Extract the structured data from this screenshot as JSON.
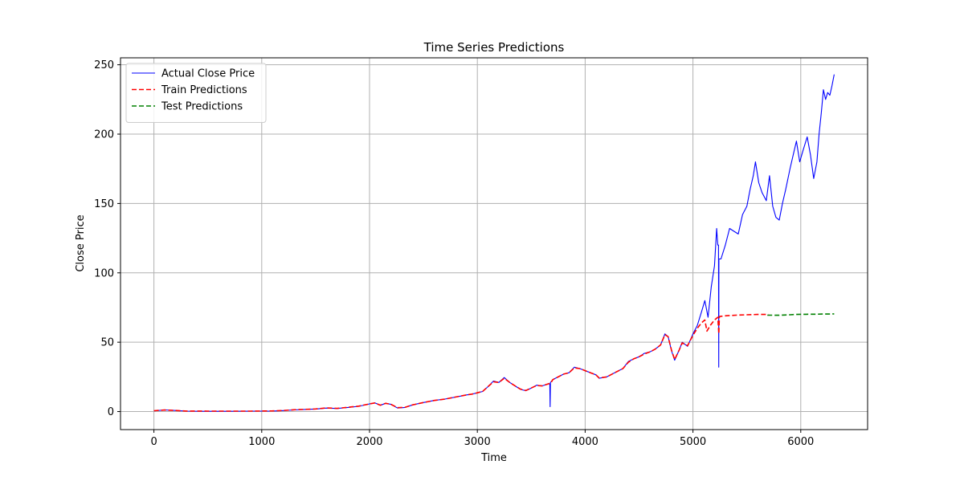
{
  "chart_data": {
    "type": "line",
    "title": "Time Series Predictions",
    "xlabel": "Time",
    "ylabel": "Close Price",
    "xlim": [
      -310,
      6620
    ],
    "ylim": [
      -13,
      255
    ],
    "xticks": [
      0,
      1000,
      2000,
      3000,
      4000,
      5000,
      6000
    ],
    "yticks": [
      0,
      50,
      100,
      150,
      200,
      250
    ],
    "grid": true,
    "legend_position": "top-left",
    "series": [
      {
        "name": "Actual Close Price",
        "color": "#0000ff",
        "style": "solid",
        "points": [
          [
            0,
            0.5
          ],
          [
            100,
            1.2
          ],
          [
            200,
            0.8
          ],
          [
            300,
            0.3
          ],
          [
            500,
            0.2
          ],
          [
            700,
            0.2
          ],
          [
            900,
            0.3
          ],
          [
            1100,
            0.4
          ],
          [
            1200,
            0.7
          ],
          [
            1300,
            1.2
          ],
          [
            1400,
            1.5
          ],
          [
            1500,
            1.8
          ],
          [
            1600,
            2.5
          ],
          [
            1700,
            2.2
          ],
          [
            1800,
            3.0
          ],
          [
            1900,
            3.8
          ],
          [
            2000,
            5.5
          ],
          [
            2050,
            6.3
          ],
          [
            2100,
            4.5
          ],
          [
            2150,
            6.0
          ],
          [
            2200,
            5.2
          ],
          [
            2260,
            2.5
          ],
          [
            2330,
            3.0
          ],
          [
            2400,
            4.8
          ],
          [
            2500,
            6.5
          ],
          [
            2600,
            8.0
          ],
          [
            2700,
            9.0
          ],
          [
            2800,
            10.5
          ],
          [
            2900,
            12.0
          ],
          [
            2950,
            12.5
          ],
          [
            3000,
            13.5
          ],
          [
            3050,
            14.5
          ],
          [
            3100,
            18.0
          ],
          [
            3150,
            22.0
          ],
          [
            3200,
            21.0
          ],
          [
            3250,
            24.5
          ],
          [
            3300,
            21.0
          ],
          [
            3350,
            18.5
          ],
          [
            3400,
            16.0
          ],
          [
            3450,
            15.0
          ],
          [
            3500,
            17.0
          ],
          [
            3550,
            19.0
          ],
          [
            3600,
            18.5
          ],
          [
            3660,
            20.0
          ],
          [
            3672,
            20.0
          ],
          [
            3675,
            3.5
          ],
          [
            3678,
            21.0
          ],
          [
            3700,
            23.0
          ],
          [
            3750,
            25.0
          ],
          [
            3800,
            27.0
          ],
          [
            3850,
            28.0
          ],
          [
            3900,
            32.0
          ],
          [
            3950,
            31.0
          ],
          [
            4000,
            29.5
          ],
          [
            4050,
            28.0
          ],
          [
            4100,
            26.5
          ],
          [
            4130,
            24.0
          ],
          [
            4200,
            25.0
          ],
          [
            4250,
            27.0
          ],
          [
            4300,
            29.0
          ],
          [
            4350,
            31.0
          ],
          [
            4400,
            36.0
          ],
          [
            4450,
            38.0
          ],
          [
            4500,
            39.5
          ],
          [
            4550,
            42.0
          ],
          [
            4600,
            43.0
          ],
          [
            4650,
            45.0
          ],
          [
            4700,
            48.0
          ],
          [
            4740,
            56.0
          ],
          [
            4770,
            54.0
          ],
          [
            4800,
            44.0
          ],
          [
            4830,
            37.0
          ],
          [
            4870,
            44.0
          ],
          [
            4900,
            50.0
          ],
          [
            4950,
            47.0
          ],
          [
            5000,
            56.0
          ],
          [
            5040,
            62.0
          ],
          [
            5080,
            72.0
          ],
          [
            5110,
            80.0
          ],
          [
            5140,
            68.0
          ],
          [
            5170,
            90.0
          ],
          [
            5200,
            105.0
          ],
          [
            5220,
            132.0
          ],
          [
            5230,
            120.0
          ],
          [
            5237,
            120.0
          ],
          [
            5239,
            32.0
          ],
          [
            5241,
            110.0
          ],
          [
            5260,
            110.0
          ],
          [
            5300,
            120.0
          ],
          [
            5340,
            132.0
          ],
          [
            5380,
            130.0
          ],
          [
            5420,
            128.0
          ],
          [
            5460,
            142.0
          ],
          [
            5500,
            148.0
          ],
          [
            5530,
            160.0
          ],
          [
            5560,
            170.0
          ],
          [
            5580,
            180.0
          ],
          [
            5610,
            165.0
          ],
          [
            5640,
            158.0
          ],
          [
            5680,
            152.0
          ],
          [
            5710,
            170.0
          ],
          [
            5740,
            148.0
          ],
          [
            5770,
            140.0
          ],
          [
            5800,
            138.0
          ],
          [
            5830,
            150.0
          ],
          [
            5860,
            160.0
          ],
          [
            5900,
            175.0
          ],
          [
            5930,
            185.0
          ],
          [
            5960,
            195.0
          ],
          [
            5990,
            180.0
          ],
          [
            6020,
            188.0
          ],
          [
            6060,
            198.0
          ],
          [
            6090,
            185.0
          ],
          [
            6120,
            168.0
          ],
          [
            6150,
            180.0
          ],
          [
            6170,
            200.0
          ],
          [
            6190,
            215.0
          ],
          [
            6210,
            232.0
          ],
          [
            6230,
            225.0
          ],
          [
            6250,
            230.0
          ],
          [
            6270,
            228.0
          ],
          [
            6290,
            235.0
          ],
          [
            6310,
            243.0
          ]
        ]
      },
      {
        "name": "Train Predictions",
        "color": "#ff0000",
        "style": "dashed",
        "points": [
          [
            0,
            0.6
          ],
          [
            100,
            1.1
          ],
          [
            200,
            0.8
          ],
          [
            300,
            0.4
          ],
          [
            500,
            0.3
          ],
          [
            700,
            0.3
          ],
          [
            900,
            0.3
          ],
          [
            1100,
            0.5
          ],
          [
            1200,
            0.8
          ],
          [
            1300,
            1.3
          ],
          [
            1400,
            1.6
          ],
          [
            1500,
            1.9
          ],
          [
            1600,
            2.6
          ],
          [
            1700,
            2.3
          ],
          [
            1800,
            3.1
          ],
          [
            1900,
            3.9
          ],
          [
            2000,
            5.5
          ],
          [
            2050,
            6.2
          ],
          [
            2100,
            4.6
          ],
          [
            2150,
            5.9
          ],
          [
            2200,
            5.2
          ],
          [
            2260,
            2.8
          ],
          [
            2330,
            3.1
          ],
          [
            2400,
            4.8
          ],
          [
            2500,
            6.5
          ],
          [
            2600,
            8.0
          ],
          [
            2700,
            9.0
          ],
          [
            2800,
            10.5
          ],
          [
            2900,
            12.0
          ],
          [
            2950,
            12.6
          ],
          [
            3000,
            13.5
          ],
          [
            3050,
            14.6
          ],
          [
            3100,
            18.0
          ],
          [
            3150,
            21.5
          ],
          [
            3200,
            21.0
          ],
          [
            3250,
            24.0
          ],
          [
            3300,
            21.0
          ],
          [
            3350,
            18.5
          ],
          [
            3400,
            16.2
          ],
          [
            3450,
            15.2
          ],
          [
            3500,
            17.0
          ],
          [
            3550,
            18.8
          ],
          [
            3600,
            18.5
          ],
          [
            3680,
            20.5
          ],
          [
            3700,
            23.0
          ],
          [
            3750,
            25.0
          ],
          [
            3800,
            27.0
          ],
          [
            3850,
            28.0
          ],
          [
            3900,
            31.5
          ],
          [
            3950,
            31.0
          ],
          [
            4000,
            29.5
          ],
          [
            4050,
            28.0
          ],
          [
            4100,
            26.5
          ],
          [
            4130,
            24.2
          ],
          [
            4200,
            25.0
          ],
          [
            4250,
            27.0
          ],
          [
            4300,
            29.0
          ],
          [
            4350,
            31.0
          ],
          [
            4400,
            35.5
          ],
          [
            4450,
            38.0
          ],
          [
            4500,
            39.5
          ],
          [
            4550,
            41.5
          ],
          [
            4600,
            43.0
          ],
          [
            4650,
            45.0
          ],
          [
            4700,
            48.0
          ],
          [
            4740,
            55.5
          ],
          [
            4770,
            54.0
          ],
          [
            4800,
            44.5
          ],
          [
            4830,
            37.5
          ],
          [
            4870,
            44.0
          ],
          [
            4900,
            49.5
          ],
          [
            4950,
            47.5
          ],
          [
            5000,
            55.0
          ],
          [
            5040,
            60.0
          ],
          [
            5080,
            64.0
          ],
          [
            5110,
            66.0
          ],
          [
            5130,
            58.0
          ],
          [
            5160,
            62.0
          ],
          [
            5200,
            66.0
          ],
          [
            5230,
            68.0
          ],
          [
            5240,
            56.0
          ],
          [
            5245,
            68.5
          ],
          [
            5300,
            69.0
          ],
          [
            5400,
            69.5
          ],
          [
            5500,
            69.8
          ],
          [
            5600,
            70.0
          ],
          [
            5700,
            70.0
          ]
        ]
      },
      {
        "name": "Test Predictions",
        "color": "#008000",
        "style": "dashed",
        "points": [
          [
            5690,
            69.5
          ],
          [
            5750,
            69.5
          ],
          [
            5800,
            69.4
          ],
          [
            5850,
            69.6
          ],
          [
            5900,
            69.8
          ],
          [
            5950,
            70.0
          ],
          [
            6000,
            70.1
          ],
          [
            6050,
            70.1
          ],
          [
            6100,
            70.2
          ],
          [
            6150,
            70.2
          ],
          [
            6200,
            70.3
          ],
          [
            6250,
            70.3
          ],
          [
            6310,
            70.4
          ]
        ]
      }
    ]
  }
}
